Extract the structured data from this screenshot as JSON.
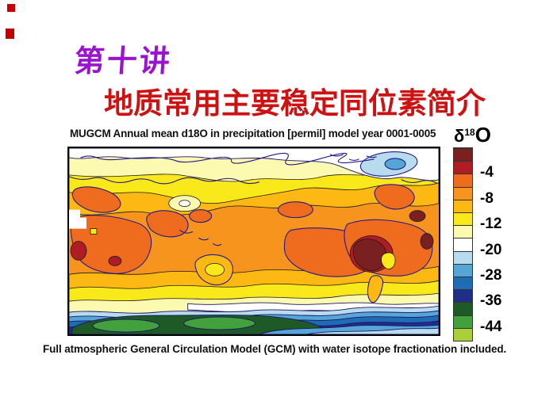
{
  "slide": {
    "title": "第十讲",
    "subtitle": "地质常用主要稳定同位素简介",
    "caption": "Full atmospheric General Circulation Model (GCM) with water isotope fractionation included.",
    "colors": {
      "title_purple": "#9a14cf",
      "subtitle_red": "#cc1212",
      "marker_red": "#c40000",
      "caption_black": "#111111"
    }
  },
  "map": {
    "title": "MUGCM Annual mean d18O in precipitation [permil] model year 0001-0005"
  },
  "legend": {
    "title_delta": "δ",
    "title_sup": "18",
    "title_element": "O",
    "swatch_colors": [
      "#7A2020",
      "#B01C24",
      "#EF6C1E",
      "#F7941E",
      "#FDB813",
      "#F9E81A",
      "#FCF9B0",
      "#FFFFFF",
      "#B8DCEE",
      "#55A6D6",
      "#1F6CB4",
      "#202E88",
      "#1E5A26",
      "#42A03D",
      "#AACF38"
    ],
    "labels": [
      "-4",
      "-8",
      "-12",
      "-20",
      "-28",
      "-36",
      "-44"
    ],
    "label_boundaries": [
      2,
      4,
      6,
      8,
      10,
      12,
      14
    ]
  },
  "chart_data": {
    "type": "heatmap",
    "subtype": "filled-contour-world-map",
    "title": "MUGCM Annual mean d18O in precipitation [permil] model year 0001-0005",
    "colorbar_label": "δ18O",
    "units": "permil",
    "colorbar_tick_labels": [
      -4,
      -8,
      -12,
      -20,
      -28,
      -36,
      -44
    ],
    "colorbar_colors_top_to_bottom": [
      "#7A2020",
      "#B01C24",
      "#EF6C1E",
      "#F7941E",
      "#FDB813",
      "#F9E81A",
      "#FCF9B0",
      "#FFFFFF",
      "#B8DCEE",
      "#55A6D6",
      "#1F6CB4",
      "#202E88",
      "#1E5A26",
      "#42A03D",
      "#AACF38"
    ],
    "legend_position": "right",
    "value_orientation": "values decrease from top of colorbar (dark red, near 0 permil) to bottom (yellow-green, about -48 permil)",
    "spatial_pattern": "Highest d18O (orange/red, -2 to -6) across tropical and subtropical oceans and continents with dark-red minima-of-enrichment patches over Africa, the Amazon/Andes and the eastern Pacific; -8 to -12 (yellow/amber) over mid-latitudes; -12 to -20 (pale yellow/white) over high northern latitudes and the Arctic; light-blue depleted anomaly over Greenland; strongly depleted -28 to -44 (blues, dark green, green) over Antarctica at the bottom of the map"
  }
}
